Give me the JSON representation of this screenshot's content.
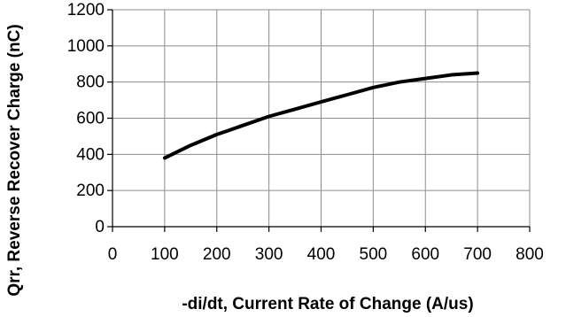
{
  "chart_data": {
    "type": "line",
    "title": "",
    "xlabel": "-di/dt, Current Rate of Change (A/us)",
    "ylabel": "Qrr, Reverse Recover Charge (nC)",
    "xlim": [
      0,
      800
    ],
    "ylim": [
      0,
      1200
    ],
    "xticks": [
      0,
      100,
      200,
      300,
      400,
      500,
      600,
      700,
      800
    ],
    "yticks": [
      0,
      200,
      400,
      600,
      800,
      1000,
      1200
    ],
    "grid": true,
    "series": [
      {
        "x": [
          100,
          150,
          200,
          250,
          300,
          350,
          400,
          450,
          500,
          550,
          600,
          650,
          700
        ],
        "y": [
          380,
          450,
          510,
          560,
          610,
          650,
          690,
          730,
          770,
          800,
          820,
          840,
          850
        ]
      }
    ]
  }
}
